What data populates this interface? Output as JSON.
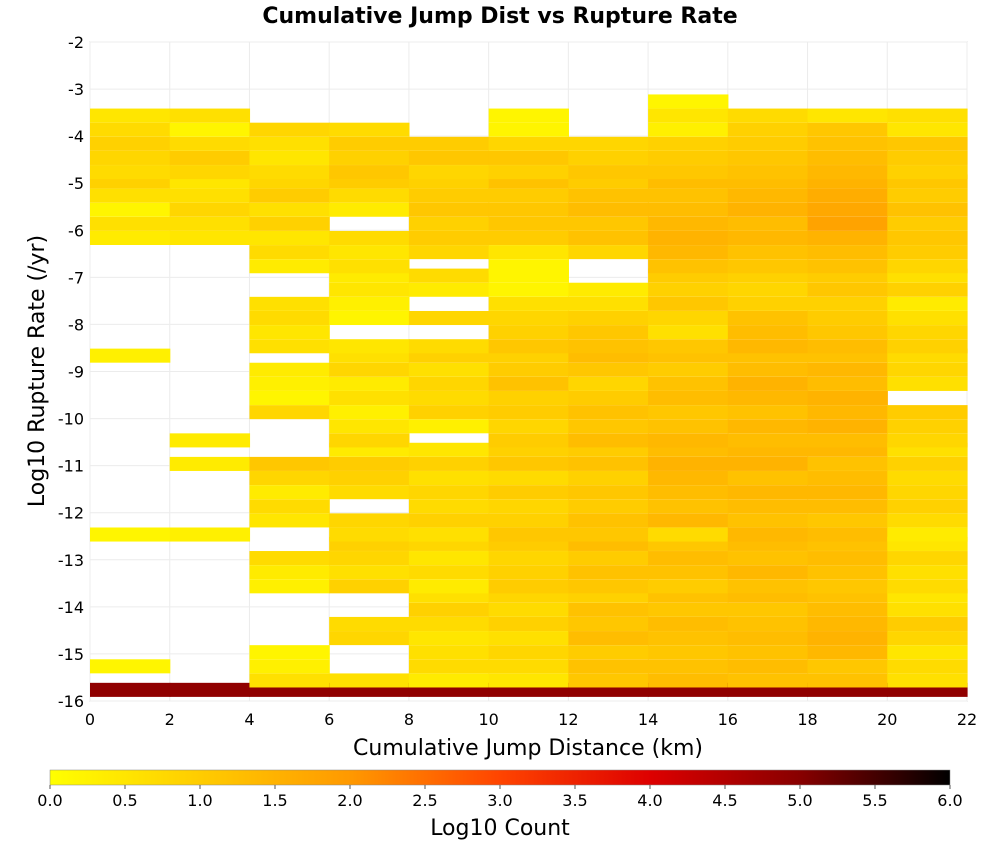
{
  "chart_data": {
    "type": "heatmap",
    "title": "Cumulative Jump Dist vs Rupture Rate",
    "xlabel": "Cumulative Jump Distance (km)",
    "ylabel": "Log10 Rupture Rate (/yr)",
    "xlim": [
      0,
      22
    ],
    "ylim": [
      -16,
      -2
    ],
    "x_ticks": [
      "0",
      "2",
      "4",
      "6",
      "8",
      "10",
      "12",
      "14",
      "16",
      "18",
      "20",
      "22"
    ],
    "y_ticks": [
      "-2",
      "-3",
      "-4",
      "-5",
      "-6",
      "-7",
      "-8",
      "-9",
      "-10",
      "-11",
      "-12",
      "-13",
      "-14",
      "-15",
      "-16"
    ],
    "x_bin_width": 2,
    "y_bin_height": 0.286,
    "colorbar": {
      "label": "Log10 Count",
      "range": [
        0.0,
        6.0
      ],
      "ticks": [
        "0.0",
        "0.5",
        "1.0",
        "1.5",
        "2.0",
        "2.5",
        "3.0",
        "3.5",
        "4.0",
        "4.5",
        "5.0",
        "5.5",
        "6.0"
      ],
      "colormap": [
        "#ffff00",
        "#ffcc00",
        "#ff9900",
        "#ff4400",
        "#dd0000",
        "#880000",
        "#000000"
      ]
    },
    "grid": true,
    "columns": [
      {
        "x_start": 0,
        "y_bins": [
          -15.9,
          -15.4,
          -12.6,
          -8.8,
          -6.3,
          -6.0,
          -5.7,
          -5.4,
          -5.1,
          -4.9,
          -4.6,
          -4.3,
          -4.0,
          -3.7
        ],
        "log_counts": [
          4.9,
          0.2,
          0.2,
          0.3,
          0.4,
          0.6,
          0.2,
          0.6,
          0.9,
          0.7,
          0.8,
          0.9,
          0.7,
          0.5
        ]
      },
      {
        "x_start": 2,
        "y_bins": [
          -15.9,
          -12.6,
          -11.1,
          -10.6,
          -6.3,
          -6.0,
          -5.7,
          -5.4,
          -5.1,
          -4.9,
          -4.6,
          -4.3,
          -4.0,
          -3.7
        ],
        "log_counts": [
          4.9,
          0.3,
          0.4,
          0.4,
          0.5,
          0.6,
          0.8,
          0.6,
          0.5,
          0.8,
          1.0,
          0.7,
          0.2,
          0.6
        ]
      },
      {
        "x_start": 4,
        "y_bins": [
          -15.9,
          -15.7,
          -15.4,
          -15.1,
          -13.7,
          -13.4,
          -13.1,
          -12.3,
          -12.0,
          -11.7,
          -11.4,
          -11.1,
          -10.0,
          -9.7,
          -9.4,
          -9.1,
          -8.6,
          -8.3,
          -8.0,
          -7.7,
          -6.9,
          -6.6,
          -6.3,
          -6.0,
          -5.7,
          -5.4,
          -5.1,
          -4.9,
          -4.6,
          -4.3,
          -4.0
        ],
        "log_counts": [
          4.9,
          0.6,
          0.3,
          0.2,
          0.3,
          0.4,
          0.7,
          0.5,
          0.7,
          0.4,
          0.8,
          1.1,
          0.8,
          0.2,
          0.3,
          0.4,
          0.6,
          0.5,
          0.7,
          0.6,
          0.4,
          0.7,
          0.5,
          0.9,
          0.6,
          1.0,
          0.8,
          0.7,
          0.5,
          0.6,
          0.8
        ]
      },
      {
        "x_start": 6,
        "y_bins": [
          -15.9,
          -15.7,
          -14.8,
          -14.5,
          -13.7,
          -13.4,
          -13.1,
          -12.8,
          -12.6,
          -12.3,
          -11.7,
          -11.4,
          -11.1,
          -10.8,
          -10.6,
          -10.3,
          -10.0,
          -9.7,
          -9.4,
          -9.1,
          -8.8,
          -8.6,
          -8.0,
          -7.7,
          -7.4,
          -7.1,
          -6.9,
          -6.6,
          -6.3,
          -5.7,
          -5.4,
          -5.1,
          -4.9,
          -4.6,
          -4.3,
          -4.0
        ],
        "log_counts": [
          4.9,
          0.6,
          0.8,
          0.7,
          0.9,
          0.6,
          0.8,
          0.9,
          0.7,
          0.8,
          0.7,
          0.9,
          1.0,
          0.4,
          0.8,
          0.5,
          0.3,
          0.6,
          0.4,
          0.8,
          0.6,
          0.5,
          0.2,
          0.3,
          0.5,
          0.4,
          0.6,
          0.5,
          0.7,
          0.4,
          0.7,
          1.0,
          1.1,
          0.9,
          1.0,
          0.7
        ]
      },
      {
        "x_start": 8,
        "y_bins": [
          -15.9,
          -15.7,
          -15.4,
          -15.1,
          -14.8,
          -14.5,
          -14.2,
          -13.9,
          -13.7,
          -13.4,
          -13.1,
          -12.8,
          -12.6,
          -12.3,
          -12.0,
          -11.7,
          -11.4,
          -11.1,
          -10.8,
          -10.3,
          -10.0,
          -9.7,
          -9.4,
          -9.1,
          -8.8,
          -8.6,
          -8.0,
          -7.4,
          -7.1,
          -6.6,
          -6.3,
          -6.0,
          -5.7,
          -5.4,
          -5.1,
          -4.9,
          -4.6,
          -4.3
        ],
        "log_counts": [
          4.9,
          0.4,
          0.7,
          0.6,
          0.5,
          0.7,
          0.9,
          0.6,
          0.4,
          0.7,
          0.5,
          0.8,
          0.6,
          0.9,
          0.7,
          0.8,
          0.6,
          0.9,
          0.5,
          0.3,
          0.9,
          0.7,
          0.8,
          0.6,
          0.9,
          0.7,
          0.8,
          0.4,
          0.7,
          0.8,
          1.0,
          0.9,
          1.1,
          1.0,
          0.9,
          0.8,
          1.1,
          1.0
        ]
      },
      {
        "x_start": 10,
        "y_bins": [
          -15.9,
          -15.7,
          -15.4,
          -15.1,
          -14.8,
          -14.5,
          -14.2,
          -13.9,
          -13.7,
          -13.4,
          -13.1,
          -12.8,
          -12.6,
          -12.3,
          -12.0,
          -11.7,
          -11.4,
          -11.1,
          -10.8,
          -10.6,
          -10.3,
          -10.0,
          -9.7,
          -9.4,
          -9.1,
          -8.8,
          -8.6,
          -8.3,
          -8.0,
          -7.7,
          -7.4,
          -7.1,
          -6.9,
          -6.6,
          -6.3,
          -6.0,
          -5.7,
          -5.4,
          -5.1,
          -4.9,
          -4.6,
          -4.3,
          -4.0,
          -3.7
        ],
        "log_counts": [
          4.9,
          0.5,
          0.7,
          0.8,
          0.6,
          0.9,
          0.7,
          0.8,
          1.0,
          0.9,
          0.8,
          1.0,
          1.1,
          0.9,
          0.8,
          1.0,
          0.7,
          1.1,
          0.9,
          1.0,
          0.8,
          1.0,
          0.9,
          1.2,
          1.0,
          0.9,
          1.1,
          0.9,
          0.8,
          0.6,
          0.2,
          0.2,
          0.2,
          0.5,
          1.0,
          1.1,
          1.1,
          1.0,
          1.2,
          0.9,
          1.1,
          0.8,
          0.2,
          0.2
        ]
      },
      {
        "x_start": 12,
        "y_bins": [
          -15.9,
          -15.7,
          -15.4,
          -15.1,
          -14.8,
          -14.5,
          -14.2,
          -13.9,
          -13.7,
          -13.4,
          -13.1,
          -12.8,
          -12.6,
          -12.3,
          -12.0,
          -11.7,
          -11.4,
          -11.1,
          -10.8,
          -10.6,
          -10.3,
          -10.0,
          -9.7,
          -9.4,
          -9.1,
          -8.8,
          -8.6,
          -8.3,
          -8.0,
          -7.7,
          -7.4,
          -6.6,
          -6.3,
          -6.0,
          -5.7,
          -5.4,
          -5.1,
          -4.9,
          -4.6,
          -4.3
        ],
        "log_counts": [
          4.9,
          1.1,
          1.2,
          1.0,
          1.3,
          1.1,
          1.2,
          0.9,
          1.1,
          1.2,
          1.0,
          1.3,
          1.1,
          1.2,
          1.0,
          1.1,
          0.9,
          1.2,
          1.0,
          1.3,
          1.1,
          1.2,
          1.0,
          0.8,
          1.1,
          1.3,
          1.2,
          1.1,
          0.9,
          0.6,
          0.4,
          0.8,
          1.2,
          1.1,
          1.3,
          1.2,
          1.0,
          1.1,
          0.9,
          0.8
        ]
      },
      {
        "x_start": 14,
        "y_bins": [
          -15.9,
          -15.7,
          -15.4,
          -15.1,
          -14.8,
          -14.5,
          -14.2,
          -13.9,
          -13.7,
          -13.4,
          -13.1,
          -12.8,
          -12.6,
          -12.3,
          -12.0,
          -11.7,
          -11.4,
          -11.1,
          -10.8,
          -10.6,
          -10.3,
          -10.0,
          -9.7,
          -9.4,
          -9.1,
          -8.8,
          -8.6,
          -8.3,
          -8.0,
          -7.7,
          -7.4,
          -7.1,
          -6.9,
          -6.6,
          -6.3,
          -6.0,
          -5.7,
          -5.4,
          -5.1,
          -4.9,
          -4.6,
          -4.3,
          -4.0,
          -3.7,
          -3.4
        ],
        "log_counts": [
          4.9,
          1.3,
          1.2,
          1.1,
          1.2,
          1.3,
          1.1,
          1.2,
          1.0,
          1.2,
          1.3,
          1.1,
          0.7,
          1.4,
          1.2,
          1.3,
          1.4,
          1.5,
          1.3,
          1.4,
          1.2,
          1.1,
          1.3,
          1.2,
          1.0,
          1.2,
          1.1,
          0.6,
          0.8,
          1.1,
          0.9,
          1.0,
          1.2,
          1.4,
          1.5,
          1.4,
          1.3,
          1.2,
          1.3,
          1.1,
          1.0,
          0.9,
          0.3,
          0.5,
          0.2
        ]
      },
      {
        "x_start": 16,
        "y_bins": [
          -15.9,
          -15.7,
          -15.4,
          -15.1,
          -14.8,
          -14.5,
          -14.2,
          -13.9,
          -13.7,
          -13.4,
          -13.1,
          -12.8,
          -12.6,
          -12.3,
          -12.0,
          -11.7,
          -11.4,
          -11.1,
          -10.8,
          -10.6,
          -10.3,
          -10.0,
          -9.7,
          -9.4,
          -9.1,
          -8.8,
          -8.6,
          -8.3,
          -8.0,
          -7.7,
          -7.4,
          -7.1,
          -6.9,
          -6.6,
          -6.3,
          -6.0,
          -5.7,
          -5.4,
          -5.1,
          -4.9,
          -4.6,
          -4.3,
          -4.0,
          -3.7
        ],
        "log_counts": [
          4.9,
          1.2,
          1.3,
          1.2,
          1.3,
          1.2,
          1.1,
          1.3,
          1.2,
          1.4,
          1.2,
          1.3,
          1.4,
          1.2,
          1.3,
          1.4,
          1.2,
          1.5,
          1.4,
          1.3,
          1.4,
          1.2,
          1.4,
          1.5,
          1.3,
          1.2,
          1.4,
          1.3,
          1.2,
          0.9,
          0.8,
          0.9,
          1.1,
          1.2,
          1.4,
          1.3,
          1.5,
          1.4,
          1.3,
          1.2,
          1.1,
          1.0,
          0.9,
          0.7
        ]
      },
      {
        "x_start": 18,
        "y_bins": [
          -15.9,
          -15.7,
          -15.4,
          -15.1,
          -14.8,
          -14.5,
          -14.2,
          -13.9,
          -13.7,
          -13.4,
          -13.1,
          -12.8,
          -12.6,
          -12.3,
          -12.0,
          -11.7,
          -11.4,
          -11.1,
          -10.8,
          -10.6,
          -10.3,
          -10.0,
          -9.7,
          -9.4,
          -9.1,
          -8.8,
          -8.6,
          -8.3,
          -8.0,
          -7.7,
          -7.4,
          -7.1,
          -6.9,
          -6.6,
          -6.3,
          -6.0,
          -5.7,
          -5.4,
          -5.1,
          -4.9,
          -4.6,
          -4.3,
          -4.0,
          -3.7
        ],
        "log_counts": [
          4.9,
          1.2,
          1.1,
          1.4,
          1.5,
          1.4,
          1.3,
          1.2,
          1.1,
          1.2,
          1.3,
          1.2,
          1.3,
          1.1,
          1.3,
          1.4,
          1.3,
          1.2,
          1.4,
          1.3,
          1.5,
          1.4,
          1.5,
          1.3,
          1.4,
          1.2,
          1.3,
          1.1,
          1.0,
          0.9,
          1.1,
          1.0,
          1.2,
          1.3,
          1.5,
          1.8,
          1.7,
          1.6,
          1.5,
          1.4,
          1.3,
          1.2,
          1.1,
          0.5
        ]
      },
      {
        "x_start": 20,
        "y_bins": [
          -15.9,
          -15.7,
          -15.4,
          -15.1,
          -14.8,
          -14.5,
          -14.2,
          -13.9,
          -13.7,
          -13.4,
          -13.1,
          -12.8,
          -12.6,
          -12.3,
          -12.0,
          -11.7,
          -11.4,
          -11.1,
          -10.8,
          -10.6,
          -10.3,
          -10.0,
          -9.4,
          -9.1,
          -8.8,
          -8.6,
          -8.3,
          -8.0,
          -7.7,
          -7.4,
          -7.1,
          -6.9,
          -6.6,
          -6.3,
          -6.0,
          -5.7,
          -5.4,
          -5.1,
          -4.9,
          -4.6,
          -4.3,
          -4.0,
          -3.7
        ],
        "log_counts": [
          4.9,
          0.6,
          0.7,
          0.5,
          0.8,
          1.0,
          0.6,
          0.5,
          0.7,
          0.6,
          0.8,
          0.5,
          0.4,
          0.7,
          0.9,
          0.8,
          0.7,
          0.9,
          0.6,
          0.8,
          0.9,
          1.0,
          0.6,
          0.8,
          0.7,
          0.9,
          0.8,
          0.6,
          0.4,
          0.9,
          0.6,
          0.8,
          1.0,
          1.1,
          1.0,
          1.2,
          1.0,
          1.1,
          0.9,
          1.0,
          1.1,
          0.5,
          0.6
        ]
      }
    ]
  }
}
